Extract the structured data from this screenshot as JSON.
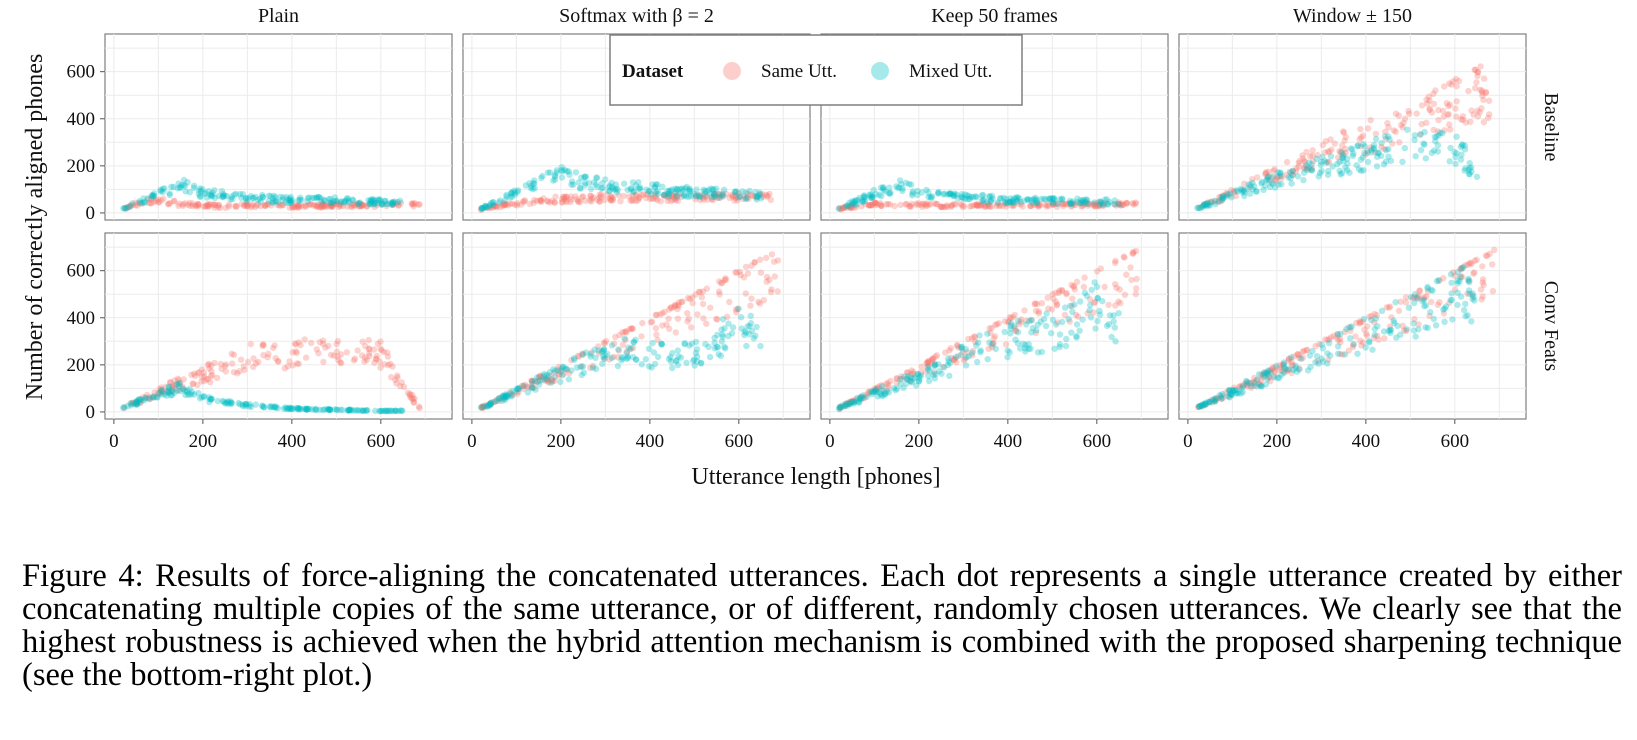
{
  "chart_data": {
    "type": "scatter",
    "facet_columns": [
      "Plain",
      "Softmax with β = 2",
      "Keep 50 frames",
      "Window ± 150"
    ],
    "facet_rows": [
      "Baseline",
      "Conv Feats"
    ],
    "xlabel": "Utterance length [phones]",
    "ylabel": "Number of correctly aligned phones",
    "xlim": [
      -20,
      760
    ],
    "ylim": [
      -30,
      760
    ],
    "x_ticks": [
      0,
      200,
      400,
      600
    ],
    "y_ticks": [
      0,
      200,
      400,
      600
    ],
    "grid": true,
    "legend": {
      "title": "Dataset",
      "position": "top-center",
      "entries": [
        {
          "name": "Same Utt.",
          "color": "#f8766d"
        },
        {
          "name": "Mixed Utt.",
          "color": "#00bfc4"
        }
      ]
    },
    "panels": [
      {
        "row": "Baseline",
        "column": "Plain",
        "same_utt": [
          [
            20,
            18
          ],
          [
            60,
            45
          ],
          [
            100,
            60
          ],
          [
            150,
            40
          ],
          [
            200,
            35
          ],
          [
            250,
            30
          ],
          [
            300,
            35
          ],
          [
            400,
            30
          ],
          [
            500,
            35
          ],
          [
            600,
            35
          ],
          [
            690,
            40
          ]
        ],
        "mixed_utt": [
          [
            20,
            20
          ],
          [
            80,
            70
          ],
          [
            140,
            120
          ],
          [
            160,
            130
          ],
          [
            200,
            90
          ],
          [
            300,
            70
          ],
          [
            400,
            60
          ],
          [
            500,
            60
          ],
          [
            600,
            50
          ],
          [
            650,
            45
          ]
        ]
      },
      {
        "row": "Baseline",
        "column": "Softmax with β = 2",
        "same_utt": [
          [
            20,
            18
          ],
          [
            80,
            40
          ],
          [
            150,
            60
          ],
          [
            200,
            60
          ],
          [
            300,
            70
          ],
          [
            400,
            70
          ],
          [
            500,
            70
          ],
          [
            600,
            75
          ],
          [
            690,
            70
          ]
        ],
        "mixed_utt": [
          [
            20,
            20
          ],
          [
            100,
            100
          ],
          [
            180,
            170
          ],
          [
            200,
            180
          ],
          [
            250,
            140
          ],
          [
            350,
            120
          ],
          [
            450,
            100
          ],
          [
            550,
            90
          ],
          [
            650,
            80
          ]
        ]
      },
      {
        "row": "Baseline",
        "column": "Keep 50 frames",
        "same_utt": [
          [
            20,
            18
          ],
          [
            80,
            40
          ],
          [
            150,
            40
          ],
          [
            200,
            35
          ],
          [
            300,
            35
          ],
          [
            400,
            35
          ],
          [
            500,
            35
          ],
          [
            600,
            40
          ],
          [
            690,
            40
          ]
        ],
        "mixed_utt": [
          [
            20,
            20
          ],
          [
            80,
            70
          ],
          [
            140,
            120
          ],
          [
            160,
            130
          ],
          [
            200,
            90
          ],
          [
            300,
            70
          ],
          [
            400,
            60
          ],
          [
            500,
            55
          ],
          [
            650,
            50
          ]
        ]
      },
      {
        "row": "Baseline",
        "column": "Window ± 150",
        "same_utt": [
          [
            20,
            18
          ],
          [
            100,
            90
          ],
          [
            200,
            180
          ],
          [
            300,
            270
          ],
          [
            400,
            350
          ],
          [
            500,
            430
          ],
          [
            600,
            500
          ],
          [
            680,
            560
          ]
        ],
        "mixed_utt": [
          [
            20,
            20
          ],
          [
            100,
            80
          ],
          [
            200,
            150
          ],
          [
            300,
            210
          ],
          [
            400,
            260
          ],
          [
            500,
            320
          ],
          [
            600,
            300
          ],
          [
            650,
            200
          ]
        ]
      },
      {
        "row": "Conv Feats",
        "column": "Plain",
        "same_utt": [
          [
            20,
            18
          ],
          [
            100,
            90
          ],
          [
            200,
            170
          ],
          [
            250,
            200
          ],
          [
            300,
            250
          ],
          [
            400,
            260
          ],
          [
            500,
            300
          ],
          [
            600,
            260
          ],
          [
            690,
            10
          ]
        ],
        "mixed_utt": [
          [
            20,
            20
          ],
          [
            100,
            80
          ],
          [
            150,
            110
          ],
          [
            200,
            60
          ],
          [
            300,
            30
          ],
          [
            400,
            15
          ],
          [
            500,
            10
          ],
          [
            600,
            5
          ],
          [
            650,
            5
          ]
        ]
      },
      {
        "row": "Conv Feats",
        "column": "Softmax with β = 2",
        "same_utt": [
          [
            20,
            20
          ],
          [
            100,
            100
          ],
          [
            200,
            200
          ],
          [
            300,
            300
          ],
          [
            400,
            400
          ],
          [
            500,
            500
          ],
          [
            600,
            600
          ],
          [
            690,
            690
          ]
        ],
        "mixed_utt": [
          [
            20,
            20
          ],
          [
            150,
            140
          ],
          [
            250,
            220
          ],
          [
            350,
            280
          ],
          [
            450,
            250
          ],
          [
            550,
            300
          ],
          [
            600,
            450
          ],
          [
            650,
            300
          ]
        ]
      },
      {
        "row": "Conv Feats",
        "column": "Keep 50 frames",
        "same_utt": [
          [
            20,
            20
          ],
          [
            100,
            100
          ],
          [
            200,
            200
          ],
          [
            300,
            300
          ],
          [
            400,
            400
          ],
          [
            500,
            500
          ],
          [
            600,
            600
          ],
          [
            690,
            690
          ]
        ],
        "mixed_utt": [
          [
            20,
            20
          ],
          [
            150,
            120
          ],
          [
            250,
            200
          ],
          [
            350,
            300
          ],
          [
            450,
            350
          ],
          [
            550,
            400
          ],
          [
            600,
            500
          ],
          [
            650,
            400
          ]
        ]
      },
      {
        "row": "Conv Feats",
        "column": "Window ± 150",
        "same_utt": [
          [
            20,
            20
          ],
          [
            100,
            100
          ],
          [
            200,
            200
          ],
          [
            300,
            300
          ],
          [
            400,
            400
          ],
          [
            500,
            500
          ],
          [
            600,
            600
          ],
          [
            690,
            690
          ]
        ],
        "mixed_utt": [
          [
            20,
            20
          ],
          [
            150,
            140
          ],
          [
            250,
            220
          ],
          [
            350,
            330
          ],
          [
            450,
            400
          ],
          [
            550,
            480
          ],
          [
            600,
            560
          ],
          [
            650,
            500
          ]
        ]
      }
    ]
  },
  "caption": "Figure 4:  Results of force-aligning the concatenated utterances. Each dot represents a single utterance created by either concatenating multiple copies of the same utterance, or of different, randomly chosen utterances. We clearly see that the highest robustness is achieved when the hybrid attention mechanism is combined with the proposed sharpening technique (see the bottom-right plot.)"
}
